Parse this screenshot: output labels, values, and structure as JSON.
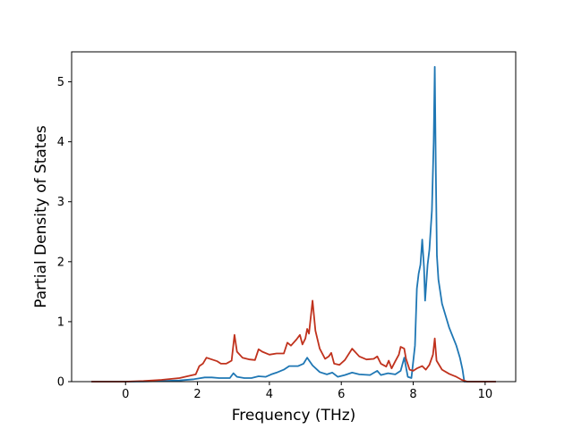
{
  "chart_data": {
    "type": "line",
    "xlabel": "Frequency (THz)",
    "ylabel": "Partial Density of States",
    "xlim": [
      -1.5,
      10.85
    ],
    "ylim": [
      0,
      5.5
    ],
    "x_ticks": [
      0,
      2,
      4,
      6,
      8,
      10
    ],
    "y_ticks": [
      0,
      1,
      2,
      3,
      4,
      5
    ],
    "grid": false,
    "series": [
      {
        "color": "#1f77b4",
        "points": [
          [
            -0.95,
            0.0
          ],
          [
            0.0,
            0.0
          ],
          [
            0.5,
            0.003
          ],
          [
            1.0,
            0.01
          ],
          [
            1.5,
            0.02
          ],
          [
            1.9,
            0.04
          ],
          [
            2.0,
            0.05
          ],
          [
            2.2,
            0.07
          ],
          [
            2.4,
            0.07
          ],
          [
            2.6,
            0.06
          ],
          [
            2.9,
            0.06
          ],
          [
            3.0,
            0.14
          ],
          [
            3.1,
            0.08
          ],
          [
            3.3,
            0.06
          ],
          [
            3.5,
            0.06
          ],
          [
            3.7,
            0.09
          ],
          [
            3.9,
            0.08
          ],
          [
            4.05,
            0.12
          ],
          [
            4.2,
            0.15
          ],
          [
            4.4,
            0.2
          ],
          [
            4.55,
            0.26
          ],
          [
            4.8,
            0.26
          ],
          [
            4.95,
            0.3
          ],
          [
            5.05,
            0.4
          ],
          [
            5.2,
            0.27
          ],
          [
            5.4,
            0.16
          ],
          [
            5.6,
            0.12
          ],
          [
            5.75,
            0.15
          ],
          [
            5.9,
            0.08
          ],
          [
            6.1,
            0.11
          ],
          [
            6.3,
            0.15
          ],
          [
            6.5,
            0.12
          ],
          [
            6.8,
            0.11
          ],
          [
            7.0,
            0.18
          ],
          [
            7.1,
            0.11
          ],
          [
            7.3,
            0.14
          ],
          [
            7.5,
            0.12
          ],
          [
            7.65,
            0.18
          ],
          [
            7.75,
            0.4
          ],
          [
            7.85,
            0.08
          ],
          [
            7.95,
            0.06
          ],
          [
            8.05,
            0.6
          ],
          [
            8.1,
            1.55
          ],
          [
            8.15,
            1.8
          ],
          [
            8.2,
            1.95
          ],
          [
            8.25,
            2.37
          ],
          [
            8.3,
            1.9
          ],
          [
            8.33,
            1.35
          ],
          [
            8.4,
            1.95
          ],
          [
            8.45,
            2.2
          ],
          [
            8.52,
            2.85
          ],
          [
            8.57,
            4.0
          ],
          [
            8.6,
            5.25
          ],
          [
            8.63,
            3.5
          ],
          [
            8.66,
            2.1
          ],
          [
            8.7,
            1.7
          ],
          [
            8.8,
            1.3
          ],
          [
            9.0,
            0.9
          ],
          [
            9.2,
            0.6
          ],
          [
            9.3,
            0.4
          ],
          [
            9.37,
            0.2
          ],
          [
            9.42,
            0.0
          ],
          [
            10.3,
            0.0
          ]
        ]
      },
      {
        "color": "#c0321d",
        "points": [
          [
            -0.95,
            0.0
          ],
          [
            0.0,
            0.0
          ],
          [
            0.5,
            0.01
          ],
          [
            1.0,
            0.03
          ],
          [
            1.5,
            0.06
          ],
          [
            1.8,
            0.1
          ],
          [
            1.95,
            0.12
          ],
          [
            2.05,
            0.26
          ],
          [
            2.15,
            0.3
          ],
          [
            2.25,
            0.4
          ],
          [
            2.4,
            0.37
          ],
          [
            2.55,
            0.34
          ],
          [
            2.65,
            0.3
          ],
          [
            2.8,
            0.3
          ],
          [
            2.95,
            0.35
          ],
          [
            3.03,
            0.78
          ],
          [
            3.1,
            0.5
          ],
          [
            3.25,
            0.4
          ],
          [
            3.45,
            0.37
          ],
          [
            3.6,
            0.36
          ],
          [
            3.7,
            0.54
          ],
          [
            3.8,
            0.5
          ],
          [
            4.0,
            0.45
          ],
          [
            4.2,
            0.47
          ],
          [
            4.4,
            0.47
          ],
          [
            4.5,
            0.65
          ],
          [
            4.6,
            0.6
          ],
          [
            4.75,
            0.7
          ],
          [
            4.85,
            0.78
          ],
          [
            4.92,
            0.62
          ],
          [
            5.0,
            0.72
          ],
          [
            5.05,
            0.88
          ],
          [
            5.1,
            0.8
          ],
          [
            5.2,
            1.35
          ],
          [
            5.28,
            0.85
          ],
          [
            5.4,
            0.55
          ],
          [
            5.55,
            0.38
          ],
          [
            5.65,
            0.42
          ],
          [
            5.72,
            0.48
          ],
          [
            5.8,
            0.3
          ],
          [
            5.95,
            0.28
          ],
          [
            6.1,
            0.36
          ],
          [
            6.3,
            0.55
          ],
          [
            6.5,
            0.42
          ],
          [
            6.7,
            0.37
          ],
          [
            6.9,
            0.38
          ],
          [
            7.0,
            0.42
          ],
          [
            7.1,
            0.3
          ],
          [
            7.25,
            0.25
          ],
          [
            7.32,
            0.35
          ],
          [
            7.4,
            0.22
          ],
          [
            7.5,
            0.34
          ],
          [
            7.6,
            0.45
          ],
          [
            7.65,
            0.58
          ],
          [
            7.75,
            0.55
          ],
          [
            7.8,
            0.38
          ],
          [
            7.9,
            0.2
          ],
          [
            8.0,
            0.18
          ],
          [
            8.1,
            0.22
          ],
          [
            8.25,
            0.26
          ],
          [
            8.35,
            0.2
          ],
          [
            8.45,
            0.28
          ],
          [
            8.55,
            0.45
          ],
          [
            8.6,
            0.72
          ],
          [
            8.65,
            0.35
          ],
          [
            8.8,
            0.2
          ],
          [
            9.0,
            0.13
          ],
          [
            9.2,
            0.08
          ],
          [
            9.35,
            0.03
          ],
          [
            9.5,
            0.0
          ],
          [
            10.3,
            0.0
          ]
        ]
      }
    ]
  }
}
